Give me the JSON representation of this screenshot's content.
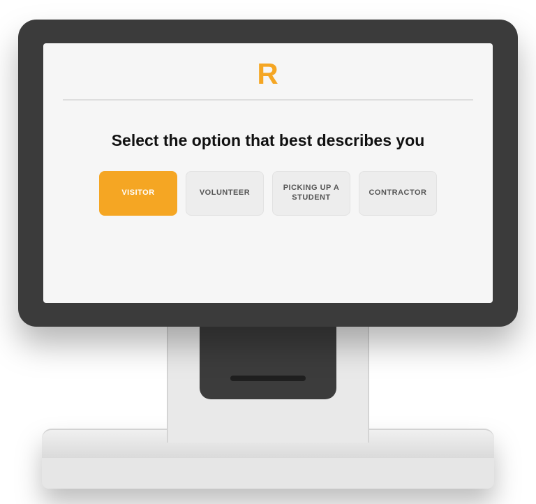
{
  "logo_letter": "R",
  "heading": "Select the option that best describes you",
  "options": [
    {
      "label": "VISITOR",
      "selected": true
    },
    {
      "label": "VOLUNTEER",
      "selected": false
    },
    {
      "label": "PICKING UP A STUDENT",
      "selected": false
    },
    {
      "label": "CONTRACTOR",
      "selected": false
    }
  ],
  "colors": {
    "accent": "#f5a623",
    "screen_bg": "#f6f6f6",
    "frame": "#3b3b3b",
    "button_bg": "#ededed",
    "button_text": "#555555",
    "heading": "#111111",
    "divider": "#dedede"
  }
}
